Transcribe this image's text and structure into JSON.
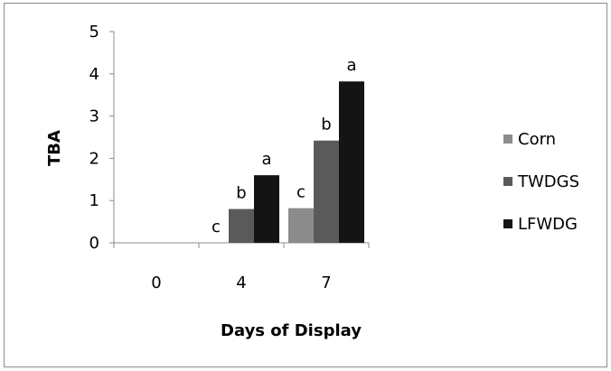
{
  "chart_data": {
    "type": "bar",
    "categories": [
      "0",
      "4",
      "7"
    ],
    "series": [
      {
        "name": "Corn",
        "color": "#8c8c8c",
        "values": [
          0,
          0,
          0.82
        ],
        "labels": [
          "",
          "c",
          "c"
        ]
      },
      {
        "name": "TWDGS",
        "color": "#5a5a5a",
        "values": [
          0,
          0.8,
          2.42
        ],
        "labels": [
          "",
          "b",
          "b"
        ]
      },
      {
        "name": "LFWDG",
        "color": "#141414",
        "values": [
          0,
          1.6,
          3.82
        ],
        "labels": [
          "",
          "a",
          "a"
        ]
      }
    ],
    "title": "",
    "xlabel": "Days of Display",
    "ylabel": "TBA",
    "ylim": [
      0,
      5
    ],
    "yticks": [
      "0",
      "1",
      "2",
      "3",
      "4",
      "5"
    ],
    "grid": false,
    "legend_position": "right"
  }
}
